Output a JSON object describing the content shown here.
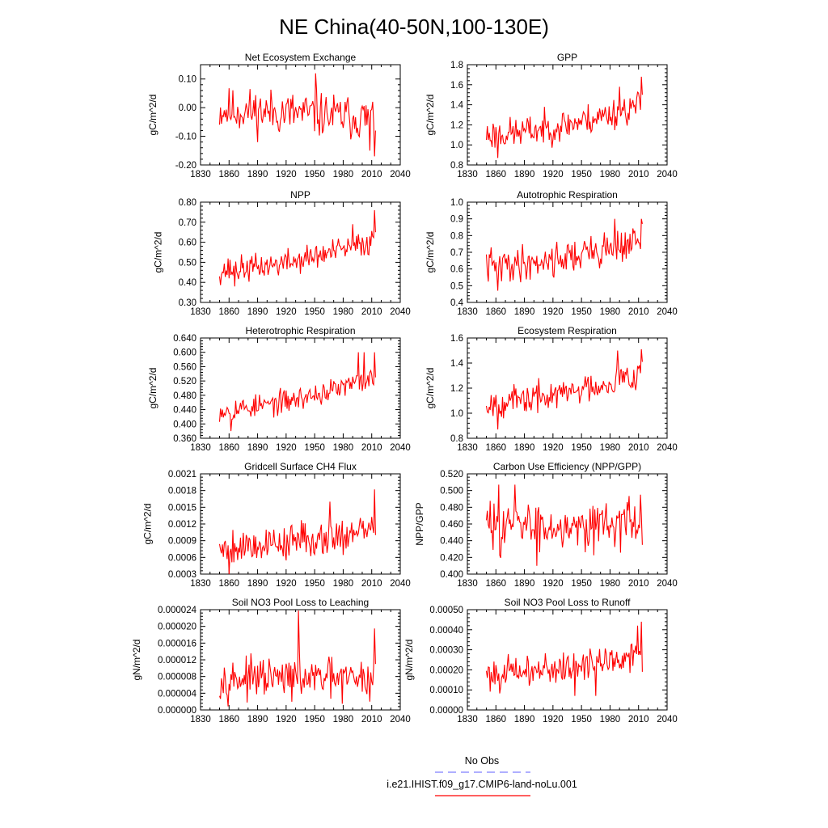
{
  "figure": {
    "title": "NE China(40-50N,100-130E)",
    "legend": [
      {
        "label": "No Obs",
        "color": "#7f7fff",
        "dash": true
      },
      {
        "label": "i.e21.IHIST.f09_g17.CMIP6-land-noLu.001",
        "color": "#ff0000",
        "dash": false
      }
    ]
  },
  "chart_data": [
    {
      "type": "line",
      "title": "Net Ecosystem Exchange",
      "ylabel": "gC/m^2/d",
      "xlim": [
        1830,
        2040
      ],
      "ylim": [
        -0.2,
        0.15
      ],
      "yticks": [
        -0.2,
        -0.1,
        0.0,
        0.1
      ],
      "yticklabels": [
        "-0.20",
        "-0.10",
        "0.00",
        "0.10"
      ],
      "xticks": [
        1830,
        1860,
        1890,
        1920,
        1950,
        1980,
        2010,
        2040
      ],
      "x_start": 1850,
      "x_end": 2014,
      "series": [
        {
          "color": "#ff0000",
          "values": []
        }
      ],
      "gen": {
        "seed": 11,
        "base": -0.01,
        "trend": -0.03,
        "amp": 0.06,
        "lastTail": [
          -0.17,
          -0.08
        ],
        "spikes": [
          [
            1951,
            0.12
          ],
          [
            2008,
            -0.15
          ]
        ]
      }
    },
    {
      "type": "line",
      "title": "GPP",
      "ylabel": "gC/m^2/d",
      "xlim": [
        1830,
        2040
      ],
      "ylim": [
        0.8,
        1.8
      ],
      "yticks": [
        0.8,
        1.0,
        1.2,
        1.4,
        1.6,
        1.8
      ],
      "yticklabels": [
        "0.8",
        "1.0",
        "1.2",
        "1.4",
        "1.6",
        "1.8"
      ],
      "xticks": [
        1830,
        1860,
        1890,
        1920,
        1950,
        1980,
        2010,
        2040
      ],
      "x_start": 1850,
      "x_end": 2014,
      "series": [
        {
          "color": "#ff0000",
          "values": []
        }
      ],
      "gen": {
        "seed": 23,
        "base": 1.1,
        "trend": 0.3,
        "amp": 0.12,
        "lastTail": [
          1.68,
          1.5
        ],
        "spikes": [
          [
            1862,
            0.87
          ],
          [
            1990,
            1.58
          ]
        ]
      }
    },
    {
      "type": "line",
      "title": "NPP",
      "ylabel": "gC/m^2/d",
      "xlim": [
        1830,
        2040
      ],
      "ylim": [
        0.3,
        0.8
      ],
      "yticks": [
        0.3,
        0.4,
        0.5,
        0.6,
        0.7,
        0.8
      ],
      "yticklabels": [
        "0.30",
        "0.40",
        "0.50",
        "0.60",
        "0.70",
        "0.80"
      ],
      "xticks": [
        1830,
        1860,
        1890,
        1920,
        1950,
        1980,
        2010,
        2040
      ],
      "x_start": 1850,
      "x_end": 2014,
      "series": [
        {
          "color": "#ff0000",
          "values": []
        }
      ],
      "gen": {
        "seed": 37,
        "base": 0.46,
        "trend": 0.15,
        "amp": 0.05,
        "lastTail": [
          0.76,
          0.65
        ],
        "spikes": [
          [
            1866,
            0.38
          ],
          [
            1990,
            0.69
          ]
        ]
      }
    },
    {
      "type": "line",
      "title": "Autotrophic Respiration",
      "ylabel": "gC/m^2/d",
      "xlim": [
        1830,
        2040
      ],
      "ylim": [
        0.4,
        1.0
      ],
      "yticks": [
        0.4,
        0.5,
        0.6,
        0.7,
        0.8,
        0.9,
        1.0
      ],
      "yticklabels": [
        "0.4",
        "0.5",
        "0.6",
        "0.7",
        "0.8",
        "0.9",
        "1.0"
      ],
      "xticks": [
        1830,
        1860,
        1890,
        1920,
        1950,
        1980,
        2010,
        2040
      ],
      "x_start": 1850,
      "x_end": 2014,
      "series": [
        {
          "color": "#ff0000",
          "values": []
        }
      ],
      "gen": {
        "seed": 41,
        "base": 0.62,
        "trend": 0.15,
        "amp": 0.08,
        "lastTail": [
          0.9,
          0.87
        ],
        "spikes": [
          [
            1862,
            0.47
          ],
          [
            1985,
            0.9
          ]
        ]
      }
    },
    {
      "type": "line",
      "title": "Heterotrophic Respiration",
      "ylabel": "gC/m^2/d",
      "xlim": [
        1830,
        2040
      ],
      "ylim": [
        0.36,
        0.64
      ],
      "yticks": [
        0.36,
        0.4,
        0.44,
        0.48,
        0.52,
        0.56,
        0.6,
        0.64
      ],
      "yticklabels": [
        "0.360",
        "0.400",
        "0.440",
        "0.480",
        "0.520",
        "0.560",
        "0.600",
        "0.640"
      ],
      "xticks": [
        1830,
        1860,
        1890,
        1920,
        1950,
        1980,
        2010,
        2040
      ],
      "x_start": 1850,
      "x_end": 2014,
      "series": [
        {
          "color": "#ff0000",
          "values": []
        }
      ],
      "gen": {
        "seed": 53,
        "base": 0.44,
        "trend": 0.09,
        "amp": 0.025,
        "lastTail": [
          0.6,
          0.53
        ],
        "spikes": [
          [
            1862,
            0.38
          ],
          [
            1996,
            0.6
          ],
          [
            2002,
            0.6
          ]
        ]
      }
    },
    {
      "type": "line",
      "title": "Ecosystem Respiration",
      "ylabel": "gC/m^2/d",
      "xlim": [
        1830,
        2040
      ],
      "ylim": [
        0.8,
        1.6
      ],
      "yticks": [
        0.8,
        1.0,
        1.2,
        1.4,
        1.6
      ],
      "yticklabels": [
        "0.8",
        "1.0",
        "1.2",
        "1.4",
        "1.6"
      ],
      "xticks": [
        1830,
        1860,
        1890,
        1920,
        1950,
        1980,
        2010,
        2040
      ],
      "x_start": 1850,
      "x_end": 2014,
      "series": [
        {
          "color": "#ff0000",
          "values": []
        }
      ],
      "gen": {
        "seed": 67,
        "base": 1.08,
        "trend": 0.25,
        "amp": 0.09,
        "lastTail": [
          1.51,
          1.41
        ],
        "spikes": [
          [
            1862,
            0.87
          ],
          [
            1988,
            1.5
          ]
        ]
      }
    },
    {
      "type": "line",
      "title": "Gridcell Surface CH4 Flux",
      "ylabel": "gC/m^2/d",
      "xlim": [
        1830,
        2040
      ],
      "ylim": [
        0.0003,
        0.0021
      ],
      "yticks": [
        0.0003,
        0.0006,
        0.0009,
        0.0012,
        0.0015,
        0.0018,
        0.0021
      ],
      "yticklabels": [
        "0.0003",
        "0.0006",
        "0.0009",
        "0.0012",
        "0.0015",
        "0.0018",
        "0.0021"
      ],
      "xticks": [
        1830,
        1860,
        1890,
        1920,
        1950,
        1980,
        2010,
        2040
      ],
      "x_start": 1850,
      "x_end": 2014,
      "series": [
        {
          "color": "#ff0000",
          "values": []
        }
      ],
      "gen": {
        "seed": 79,
        "base": 0.0008,
        "trend": 0.0003,
        "amp": 0.00025,
        "lastTail": [
          0.00182,
          0.001
        ],
        "spikes": [
          [
            1860,
            0.0003
          ],
          [
            1966,
            0.0016
          ]
        ]
      }
    },
    {
      "type": "line",
      "title": "Carbon Use Efficiency (NPP/GPP)",
      "ylabel": "NPP/GPP",
      "xlim": [
        1830,
        2040
      ],
      "ylim": [
        0.4,
        0.52
      ],
      "yticks": [
        0.4,
        0.42,
        0.44,
        0.46,
        0.48,
        0.5,
        0.52
      ],
      "yticklabels": [
        "0.400",
        "0.420",
        "0.440",
        "0.460",
        "0.480",
        "0.500",
        "0.520"
      ],
      "xticks": [
        1830,
        1860,
        1890,
        1920,
        1950,
        1980,
        2010,
        2040
      ],
      "x_start": 1850,
      "x_end": 2014,
      "series": [
        {
          "color": "#ff0000",
          "values": []
        }
      ],
      "gen": {
        "seed": 83,
        "base": 0.458,
        "trend": 0.005,
        "amp": 0.022,
        "lastTail": [
          0.47,
          0.435
        ],
        "spikes": [
          [
            1863,
            0.507
          ],
          [
            1903,
            0.41
          ],
          [
            1880,
            0.507
          ]
        ]
      }
    },
    {
      "type": "line",
      "title": "Soil NO3 Pool Loss to Leaching",
      "ylabel": "gN/m^2/d",
      "xlim": [
        1830,
        2040
      ],
      "ylim": [
        0.0,
        2.4e-05
      ],
      "yticks": [
        0.0,
        4e-06,
        8e-06,
        1.2e-05,
        1.6e-05,
        2e-05,
        2.4e-05
      ],
      "yticklabels": [
        "0.000000",
        "0.000004",
        "0.000008",
        "0.000012",
        "0.000016",
        "0.000020",
        "0.000024"
      ],
      "xticks": [
        1830,
        1860,
        1890,
        1920,
        1950,
        1980,
        2010,
        2040
      ],
      "x_start": 1850,
      "x_end": 2014,
      "series": [
        {
          "color": "#ff0000",
          "values": []
        }
      ],
      "gen": {
        "seed": 97,
        "base": 7.5e-06,
        "trend": 0.0,
        "amp": 3.5e-06,
        "lastTail": [
          1.95e-05,
          1.1e-05
        ],
        "spikes": [
          [
            1933,
            2.38e-05
          ],
          [
            1979,
            1.5e-06
          ],
          [
            2008,
            2e-06
          ]
        ]
      }
    },
    {
      "type": "line",
      "title": "Soil NO3 Pool Loss to Runoff",
      "ylabel": "gN/m^2/d",
      "xlim": [
        1830,
        2040
      ],
      "ylim": [
        0.0,
        0.0005
      ],
      "yticks": [
        0.0,
        0.0001,
        0.0002,
        0.0003,
        0.0004,
        0.0005
      ],
      "yticklabels": [
        "0.00000",
        "0.00010",
        "0.00020",
        "0.00030",
        "0.00040",
        "0.00050"
      ],
      "xticks": [
        1830,
        1860,
        1890,
        1920,
        1950,
        1980,
        2010,
        2040
      ],
      "x_start": 1850,
      "x_end": 2014,
      "series": [
        {
          "color": "#ff0000",
          "values": []
        }
      ],
      "gen": {
        "seed": 101,
        "base": 0.00018,
        "trend": 0.0001,
        "amp": 6e-05,
        "lastTail": [
          0.00044,
          0.00019
        ],
        "spikes": [
          [
            1943,
            7e-05
          ],
          [
            1965,
            7e-05
          ],
          [
            2009,
            0.00042
          ]
        ]
      }
    }
  ]
}
